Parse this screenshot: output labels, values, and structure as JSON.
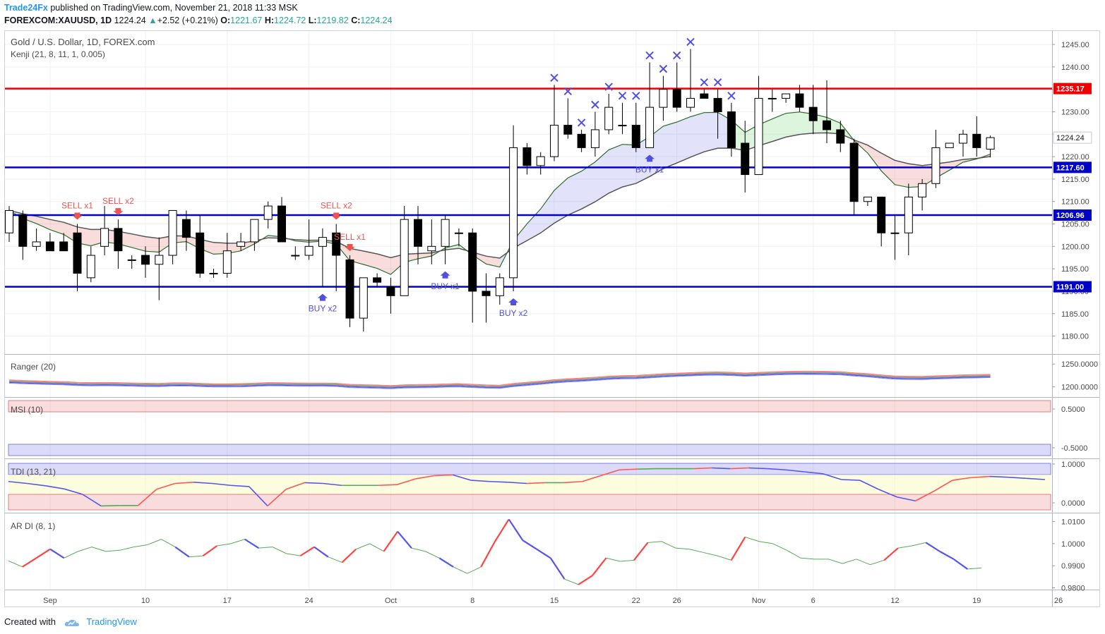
{
  "header": {
    "author": "Trade24Fx",
    "published": "published on TradingView.com, November 21, 2018 11:33 MSK",
    "symbol": "FOREXCOM:XAUUSD, 1D",
    "price": "1224.24",
    "change": "+2.52 (+0.21%)",
    "o_label": "O:",
    "o_value": "1221.67",
    "h_label": "H:",
    "h_value": "1224.72",
    "l_label": "L:",
    "l_value": "1219.82",
    "c_label": "C:",
    "c_value": "1224.24"
  },
  "footer": {
    "created_with": "Created with",
    "brand": "TradingView"
  },
  "colors": {
    "up_candle": "#ffffff",
    "down_candle": "#000000",
    "red_line": "#f00000",
    "blue_line": "#0000c8",
    "accent": "#2196f3",
    "x_mark": "#5050e0"
  },
  "chart_data": [
    {
      "type": "candlestick",
      "title": "Gold / U.S. Dollar, 1D, FOREX.com",
      "subtitle": "Kenji (21, 8, 11, 1, 0.005)",
      "ylim": [
        1176,
        1248
      ],
      "yticks": [
        1180,
        1185,
        1190,
        1195,
        1200,
        1205,
        1210,
        1215,
        1220,
        1225,
        1230,
        1235,
        1240,
        1245
      ],
      "xtick_labels": [
        "Sep",
        "10",
        "17",
        "24",
        "Oct",
        "8",
        "15",
        "22",
        "26",
        "Nov",
        "6",
        "12",
        "19",
        "26"
      ],
      "last_price_label": "1224.24",
      "horizontal_levels": [
        {
          "value": 1235.17,
          "label": "1235.17",
          "color": "#f00000"
        },
        {
          "value": 1217.6,
          "label": "1217.60",
          "color": "#0000c8"
        },
        {
          "value": 1206.96,
          "label": "1206.96",
          "color": "#0000c8"
        },
        {
          "value": 1191.0,
          "label": "1191.00",
          "color": "#0000c8"
        }
      ],
      "ohlc": [
        [
          1203,
          1209,
          1201,
          1208
        ],
        [
          1207,
          1208,
          1197,
          1200
        ],
        [
          1200,
          1204,
          1199,
          1201
        ],
        [
          1201,
          1203,
          1199,
          1199
        ],
        [
          1201,
          1203,
          1199,
          1199
        ],
        [
          1203,
          1205,
          1190,
          1194
        ],
        [
          1193,
          1200,
          1192,
          1198
        ],
        [
          1200,
          1209,
          1198,
          1204
        ],
        [
          1204,
          1206,
          1195,
          1199
        ],
        [
          1197,
          1198,
          1195,
          1197
        ],
        [
          1198,
          1200,
          1193,
          1196
        ],
        [
          1196,
          1202,
          1188,
          1198
        ],
        [
          1198,
          1208,
          1196,
          1208
        ],
        [
          1206,
          1208,
          1199,
          1202
        ],
        [
          1203,
          1207,
          1193,
          1194
        ],
        [
          1194,
          1195,
          1193,
          1194
        ],
        [
          1194,
          1203,
          1193,
          1199
        ],
        [
          1200,
          1203,
          1199,
          1201
        ],
        [
          1201,
          1206,
          1199,
          1206
        ],
        [
          1206,
          1210,
          1204,
          1209
        ],
        [
          1209,
          1211,
          1201,
          1201
        ],
        [
          1198,
          1200,
          1197,
          1198
        ],
        [
          1198,
          1206,
          1197,
          1200
        ],
        [
          1200,
          1204,
          1191,
          1202
        ],
        [
          1203,
          1205,
          1190,
          1198
        ],
        [
          1197,
          1198,
          1182,
          1184
        ],
        [
          1184,
          1193,
          1181,
          1193
        ],
        [
          1193,
          1194,
          1191,
          1192
        ],
        [
          1191,
          1193,
          1185,
          1189
        ],
        [
          1189,
          1209,
          1189,
          1206
        ],
        [
          1206,
          1209,
          1196,
          1200
        ],
        [
          1199,
          1206,
          1196,
          1200
        ],
        [
          1200,
          1207,
          1196,
          1206
        ],
        [
          1203,
          1204,
          1200,
          1203
        ],
        [
          1203,
          1204,
          1183,
          1190
        ],
        [
          1190,
          1194,
          1183,
          1189
        ],
        [
          1189,
          1194,
          1187,
          1193
        ],
        [
          1193,
          1227,
          1190,
          1222
        ],
        [
          1222,
          1223,
          1216,
          1218
        ],
        [
          1218,
          1221,
          1216,
          1220
        ],
        [
          1220,
          1236,
          1219,
          1227
        ],
        [
          1227,
          1233,
          1224,
          1225
        ],
        [
          1225,
          1226,
          1221,
          1222
        ],
        [
          1222,
          1230,
          1220,
          1226
        ],
        [
          1226,
          1234,
          1225,
          1231
        ],
        [
          1227,
          1232,
          1225,
          1227
        ],
        [
          1227,
          1232,
          1221,
          1222
        ],
        [
          1222,
          1241,
          1222,
          1231
        ],
        [
          1231,
          1238,
          1228,
          1235
        ],
        [
          1235,
          1241,
          1230,
          1231
        ],
        [
          1231,
          1244,
          1230,
          1233
        ],
        [
          1234,
          1235,
          1233,
          1233
        ],
        [
          1233,
          1235,
          1224,
          1230
        ],
        [
          1230,
          1232,
          1220,
          1222
        ],
        [
          1223,
          1228,
          1212,
          1216
        ],
        [
          1216,
          1238,
          1216,
          1233
        ],
        [
          1233,
          1235,
          1230,
          1233
        ],
        [
          1233,
          1234,
          1232,
          1234
        ],
        [
          1234,
          1236,
          1230,
          1231
        ],
        [
          1231,
          1236,
          1225,
          1228
        ],
        [
          1228,
          1237,
          1223,
          1226
        ],
        [
          1226,
          1228,
          1221,
          1223
        ],
        [
          1223,
          1224,
          1207,
          1210
        ],
        [
          1210,
          1211,
          1209,
          1211
        ],
        [
          1211,
          1211,
          1200,
          1203
        ],
        [
          1203,
          1207,
          1197,
          1203
        ],
        [
          1203,
          1214,
          1198,
          1211
        ],
        [
          1211,
          1215,
          1208,
          1214
        ],
        [
          1214,
          1226,
          1213,
          1222
        ],
        [
          1222,
          1223,
          1222,
          1223
        ],
        [
          1223,
          1226,
          1220,
          1225
        ],
        [
          1225,
          1229,
          1220,
          1222
        ],
        [
          1221.67,
          1224.72,
          1219.82,
          1224.24
        ]
      ],
      "signals": [
        {
          "text": "SELL x1",
          "bar": 5,
          "side": "sell"
        },
        {
          "text": "SELL x2",
          "bar": 8,
          "side": "sell"
        },
        {
          "text": "SELL x2",
          "bar": 24,
          "side": "sell"
        },
        {
          "text": "SELL x1",
          "bar": 25,
          "side": "sell"
        },
        {
          "text": "BUY x2",
          "bar": 23,
          "side": "buy"
        },
        {
          "text": "BUY x1",
          "bar": 32,
          "side": "buy"
        },
        {
          "text": "BUY x2",
          "bar": 37,
          "side": "buy"
        },
        {
          "text": "BUY x1",
          "bar": 47,
          "side": "buy"
        }
      ]
    },
    {
      "type": "line",
      "title": "Ranger (20)",
      "yticks": [
        1200.0,
        1250.0
      ],
      "ytick_labels": [
        "1200.0000",
        "1250.0000"
      ]
    },
    {
      "type": "line",
      "title": "MSI (10)",
      "yticks": [
        0.5,
        -0.5
      ],
      "ytick_labels": [
        "0.5000",
        "-0.5000"
      ]
    },
    {
      "type": "line",
      "title": "TDI (13, 21)",
      "yticks": [
        0,
        1
      ],
      "ytick_labels": [
        "0.0000",
        "1.0000"
      ],
      "values": [
        0.55,
        0.5,
        0.44,
        0.36,
        0.22,
        -0.08,
        -0.07,
        -0.07,
        0.35,
        0.5,
        0.53,
        0.5,
        0.45,
        0.42,
        -0.08,
        0.35,
        0.52,
        0.5,
        0.45,
        0.45,
        0.45,
        0.47,
        0.62,
        0.7,
        0.72,
        0.58,
        0.55,
        0.53,
        0.5,
        0.52,
        0.52,
        0.55,
        0.7,
        0.85,
        0.87,
        0.88,
        0.88,
        0.88,
        0.9,
        0.88,
        0.9,
        0.88,
        0.85,
        0.8,
        0.75,
        0.6,
        0.58,
        0.35,
        0.15,
        0.05,
        0.3,
        0.58,
        0.65,
        0.68,
        0.66,
        0.63,
        0.6
      ]
    },
    {
      "type": "line",
      "title": "AR DI (8, 1)",
      "yticks": [
        0.98,
        0.99,
        1.0,
        1.01
      ],
      "ytick_labels": [
        "0.9800",
        "0.9900",
        "1.0000",
        "1.0100"
      ],
      "values": [
        0.9922,
        0.9895,
        0.9935,
        0.9975,
        0.9935,
        0.9965,
        0.9985,
        0.9965,
        0.997,
        0.9985,
        0.9995,
        1.002,
        0.9985,
        0.994,
        0.9945,
        0.999,
        1.0,
        1.002,
        0.998,
        0.9985,
        0.9955,
        0.9945,
        0.9985,
        0.994,
        0.9915,
        0.9975,
        1.0,
        0.9965,
        1.0055,
        0.998,
        0.9965,
        0.9935,
        0.9895,
        0.9865,
        0.9895,
        1.001,
        1.011,
        1.0015,
        0.9975,
        0.9935,
        0.984,
        0.9815,
        0.9855,
        0.9935,
        0.992,
        0.9925,
        1.0005,
        1.001,
        0.998,
        0.9975,
        0.996,
        0.9945,
        0.9925,
        1.003,
        1.001,
        1.0,
        0.997,
        0.9935,
        0.993,
        0.993,
        0.991,
        0.993,
        0.9905,
        0.9925,
        0.998,
        0.999,
        1.0005,
        0.9965,
        0.993,
        0.9885,
        0.989
      ]
    }
  ]
}
